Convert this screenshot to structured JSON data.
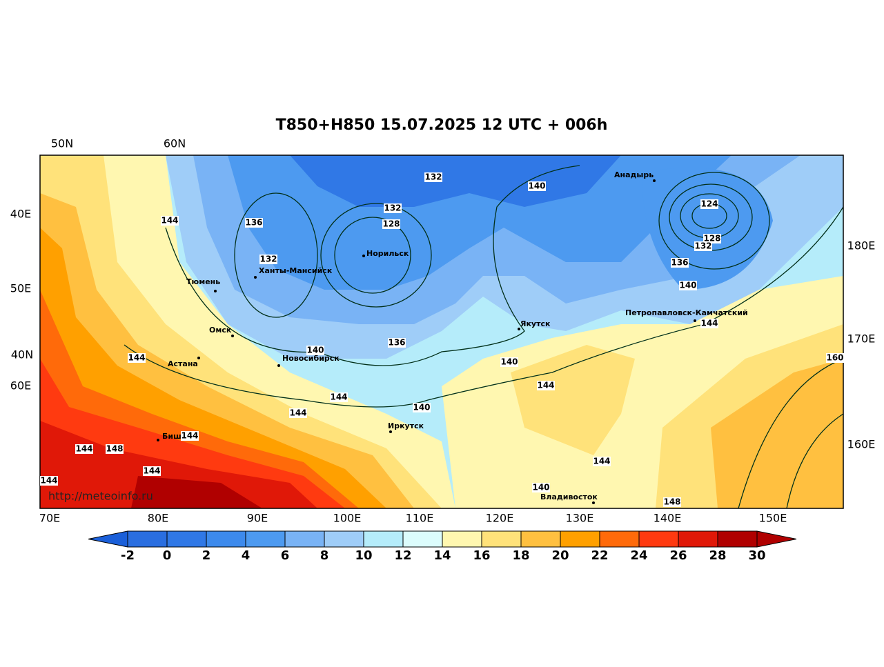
{
  "title": "T850+H850 15.07.2025 12 UTC + 006h",
  "top_labels": [
    "50N",
    "60N"
  ],
  "left_labels": [
    "40E",
    "50E",
    "40N",
    "60E"
  ],
  "right_labels": [
    "180E",
    "170E",
    "160E"
  ],
  "bottom_labels": [
    "70E",
    "80E",
    "90E",
    "100E",
    "110E",
    "120E",
    "130E",
    "140E",
    "150E"
  ],
  "cities": [
    "Анадырь",
    "Норильск",
    "Ханты-Мансийск",
    "Тюмень",
    "Якутск",
    "Петропавловск-Камчатский",
    "Омск",
    "Астана",
    "Новосибирск",
    "Иркутск",
    "Бишкек",
    "Владивосток"
  ],
  "contour_labels": [
    132,
    140,
    132,
    128,
    144,
    136,
    124,
    128,
    132,
    132,
    136,
    140,
    144,
    136,
    140,
    140,
    144,
    160,
    144,
    144,
    140,
    144,
    144,
    144,
    148,
    144,
    144,
    144,
    140,
    148
  ],
  "url": "http://meteoinfo.ru",
  "colorbar": {
    "ticks": [
      -2,
      0,
      2,
      4,
      6,
      8,
      10,
      12,
      14,
      16,
      18,
      20,
      22,
      24,
      26,
      28,
      30
    ],
    "colors": [
      "#1a5fd9",
      "#2a6ee0",
      "#3078e6",
      "#3d8aec",
      "#4d9af0",
      "#79b3f5",
      "#9fcdf8",
      "#b5ecfa",
      "#dcfcfc",
      "#fff7b0",
      "#ffe27a",
      "#ffc040",
      "#ffa000",
      "#ff6a0a",
      "#ff3a10",
      "#e01808",
      "#b00000",
      "#b00000"
    ]
  }
}
